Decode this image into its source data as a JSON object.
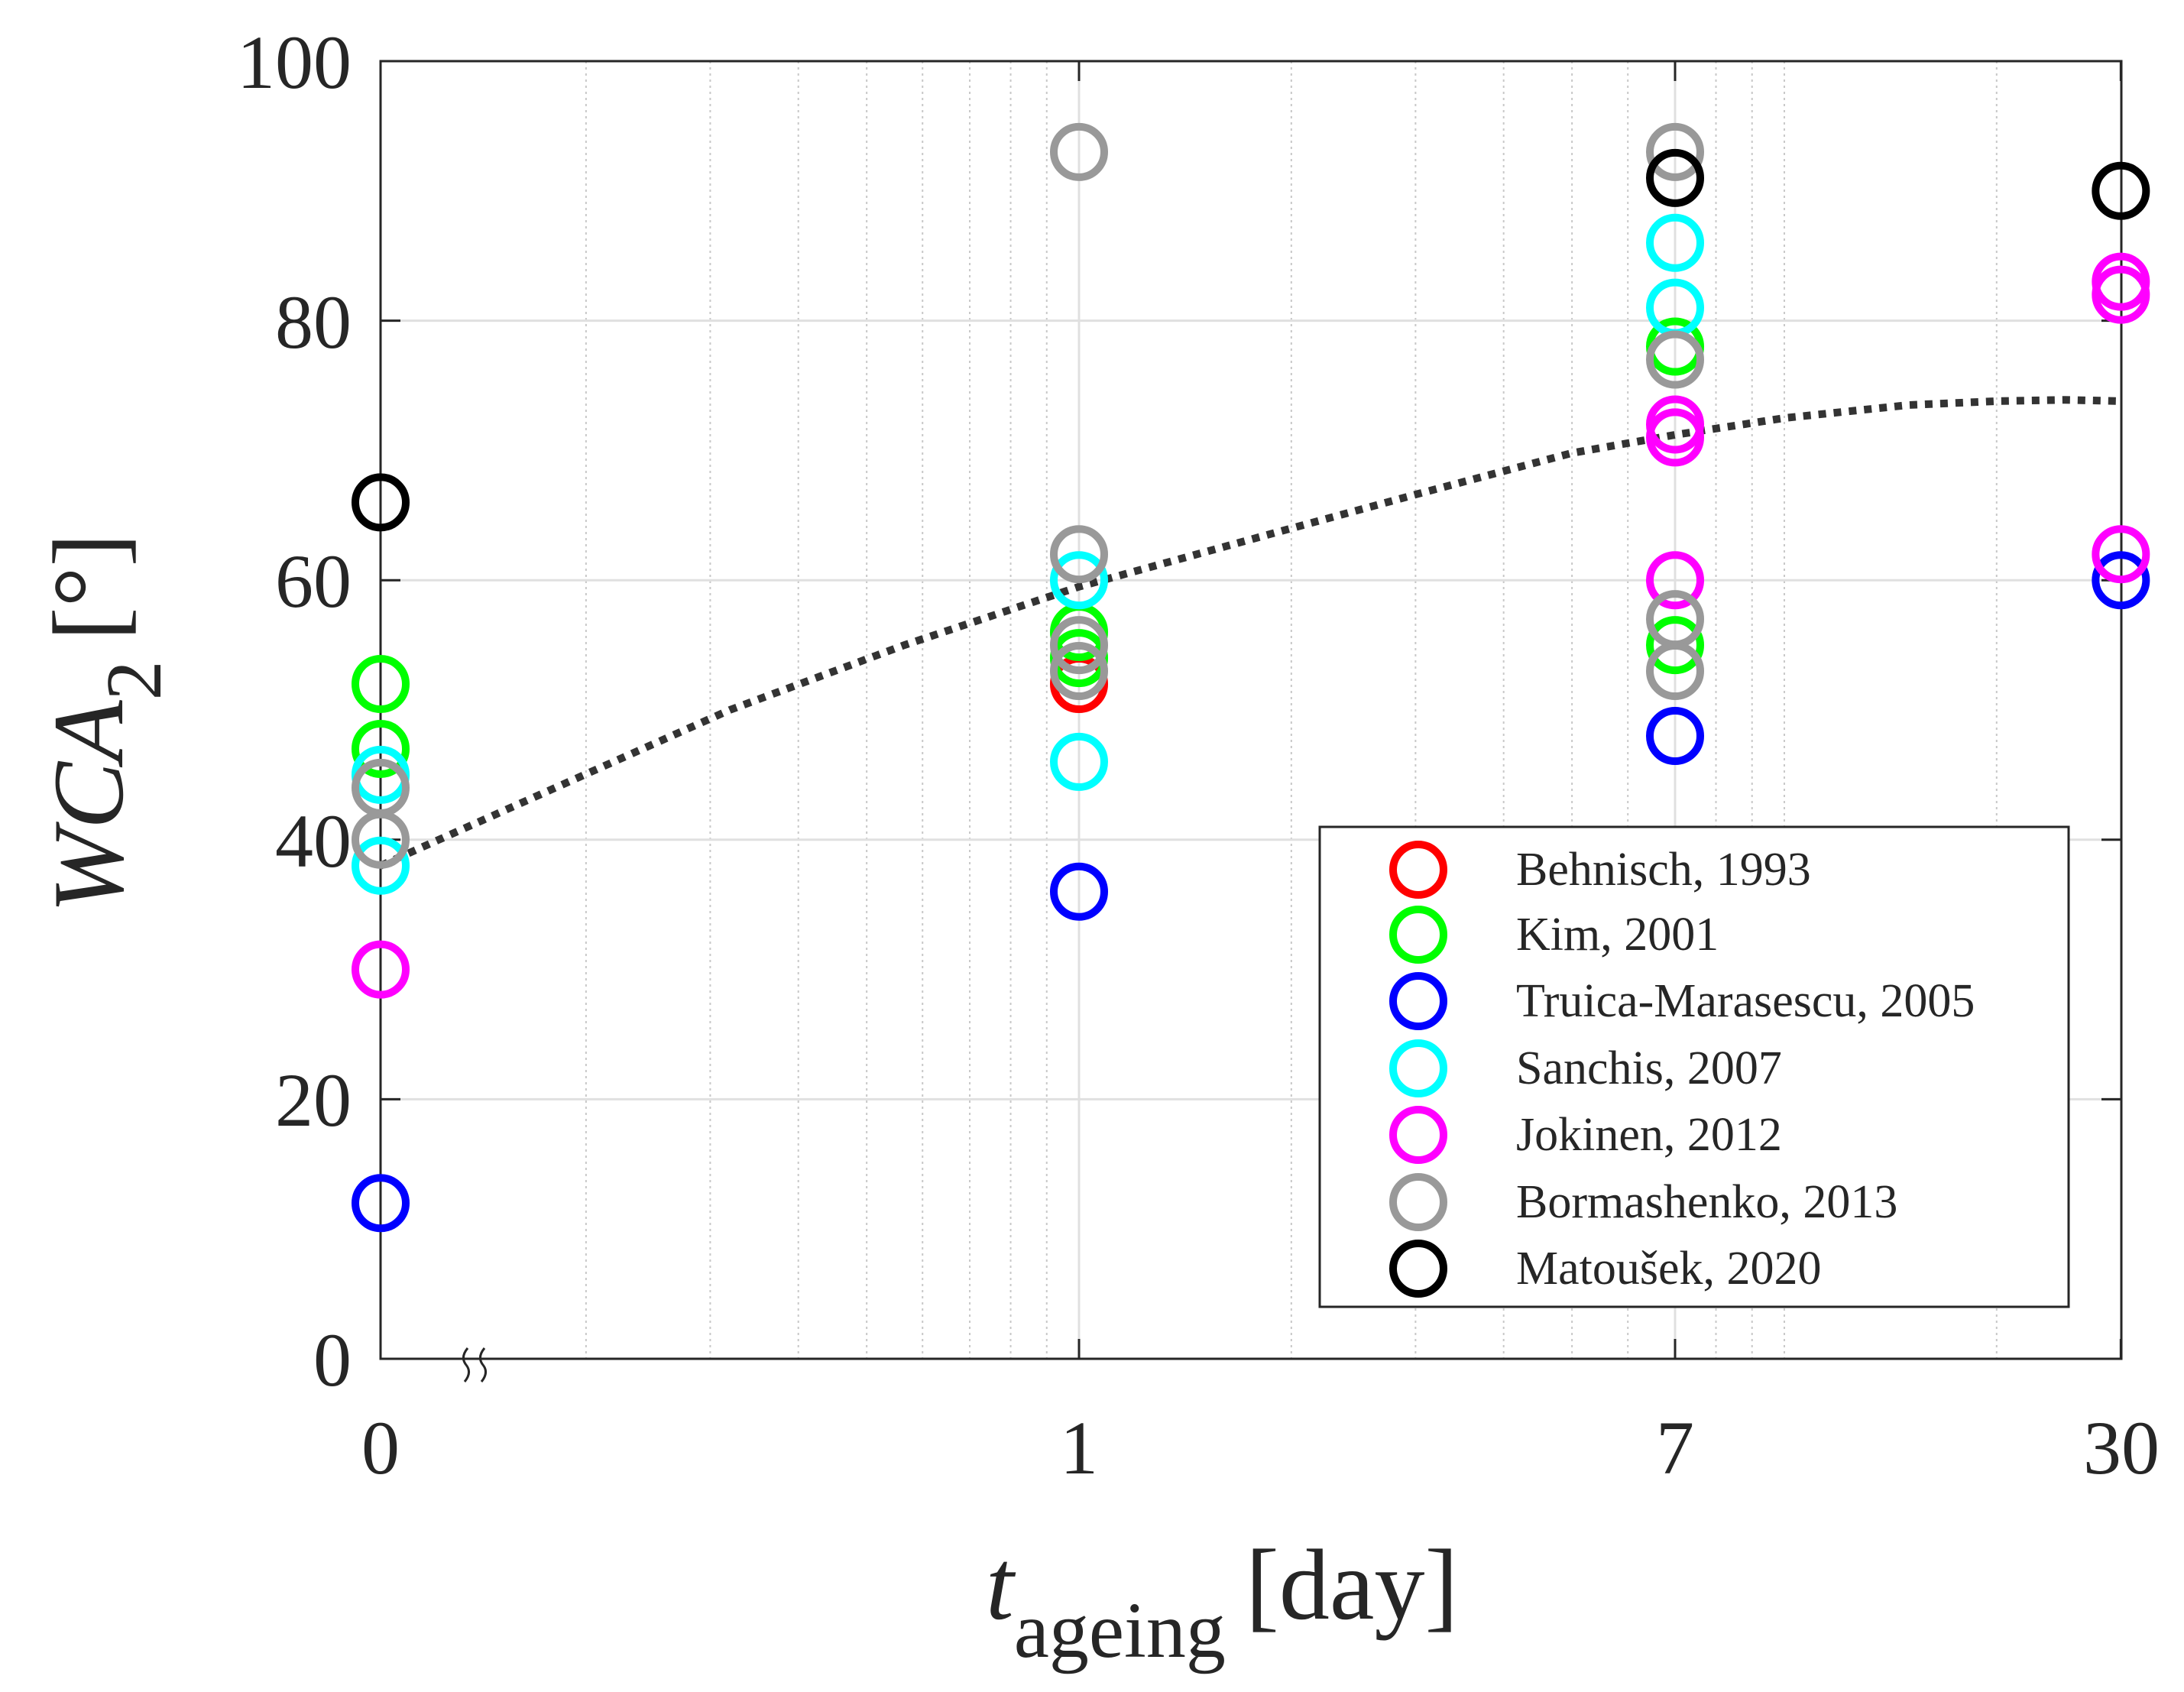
{
  "chart_data": {
    "type": "scatter",
    "xlabel": {
      "main": "t",
      "subscript": "ageing",
      "unit": "[day]"
    },
    "ylabel": {
      "main": "WCA",
      "subscript": "2",
      "unit": "[°]"
    },
    "x_tick_labels": [
      "0",
      "1",
      "7",
      "30"
    ],
    "y_tick_labels": [
      "0",
      "20",
      "40",
      "60",
      "80",
      "100"
    ],
    "y_ticks": [
      0,
      20,
      40,
      60,
      80,
      100
    ],
    "ylim": [
      0,
      100
    ],
    "x_scale": "broken log (0 shown at left, then 1 to 30 logarithmic)",
    "x_minor_grid_days": [
      0.2,
      0.3,
      0.4,
      0.5,
      0.6,
      0.7,
      0.8,
      0.9,
      2,
      3,
      4,
      5,
      6,
      8,
      9,
      10,
      20
    ],
    "grid": true,
    "legend_position": "bottom-right",
    "marker": "open circle",
    "series": [
      {
        "name": "Behnisch, 1993",
        "color": "#ff0000",
        "x": [
          1
        ],
        "y": [
          52
        ]
      },
      {
        "name": "Kim, 2001",
        "color": "#00ff00",
        "x": [
          0,
          0,
          1,
          1,
          7,
          7
        ],
        "y": [
          52,
          47,
          56,
          54,
          78,
          55
        ]
      },
      {
        "name": "Truica-Marasescu, 2005",
        "color": "#0000ff",
        "x": [
          0,
          1,
          7,
          30
        ],
        "y": [
          12,
          36,
          48,
          60
        ]
      },
      {
        "name": "Sanchis, 2007",
        "color": "#00ffff",
        "x": [
          0,
          0,
          1,
          1,
          7,
          7
        ],
        "y": [
          45,
          38,
          60,
          46,
          86,
          81
        ]
      },
      {
        "name": "Jokinen, 2012",
        "color": "#ff00ff",
        "x": [
          0,
          7,
          7,
          7,
          30,
          30,
          30
        ],
        "y": [
          30,
          72,
          71,
          60,
          83,
          82,
          62
        ]
      },
      {
        "name": "Bormashenko, 2013",
        "color": "#999999",
        "x": [
          0,
          0,
          1,
          1,
          1,
          1,
          7,
          7,
          7,
          7
        ],
        "y": [
          44,
          40,
          93,
          62,
          55,
          53,
          93,
          77,
          57,
          53
        ]
      },
      {
        "name": "Matoušek, 2020",
        "color": "#000000",
        "x": [
          0,
          7,
          30
        ],
        "y": [
          66,
          91,
          90
        ]
      }
    ],
    "trend_line": {
      "style": "dotted",
      "color": "#333333",
      "x": [
        0,
        0.25,
        0.5,
        0.75,
        1,
        2,
        3,
        5,
        7,
        10,
        15,
        20,
        25,
        30
      ],
      "y": [
        38,
        44,
        50,
        55,
        59.5,
        64,
        66.6,
        69.8,
        71.2,
        72.5,
        73.5,
        73.8,
        73.9,
        73.8
      ]
    }
  }
}
